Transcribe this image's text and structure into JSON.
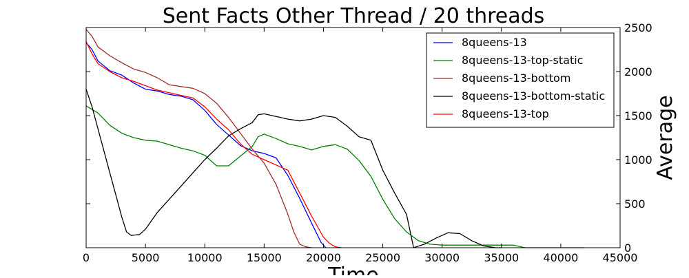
{
  "chart_data": {
    "type": "line",
    "title": "Sent Facts Other Thread / 20 threads",
    "xlabel": "Time",
    "ylabel": "Average",
    "xlim": [
      0,
      45000
    ],
    "ylim": [
      0,
      2500
    ],
    "xticks": [
      0,
      5000,
      10000,
      15000,
      20000,
      25000,
      30000,
      35000,
      40000,
      45000
    ],
    "yticks": [
      0,
      500,
      1000,
      1500,
      2000,
      2500
    ],
    "y_axis_side": "right",
    "grid": false,
    "legend_position": "top-right",
    "series": [
      {
        "name": "8queens-13",
        "color": "#0000ff",
        "x": [
          0,
          500,
          1000,
          2000,
          3000,
          4000,
          5000,
          6000,
          7000,
          8000,
          9000,
          10000,
          11000,
          12000,
          13000,
          14000,
          15000,
          16000,
          17000,
          18000,
          19000,
          19800,
          20200
        ],
        "y": [
          2330,
          2250,
          2120,
          2010,
          1960,
          1870,
          1800,
          1780,
          1740,
          1720,
          1680,
          1560,
          1400,
          1280,
          1160,
          1100,
          1070,
          1020,
          820,
          560,
          280,
          60,
          0
        ]
      },
      {
        "name": "8queens-13-top-static",
        "color": "#008000",
        "x": [
          0,
          1000,
          2000,
          3000,
          4000,
          5000,
          6000,
          7000,
          8000,
          9000,
          10000,
          11000,
          12000,
          13000,
          14000,
          14500,
          15000,
          16000,
          17000,
          18000,
          19000,
          20000,
          21000,
          22000,
          23000,
          24000,
          25000,
          26000,
          27000,
          28000,
          29000,
          30000,
          32000,
          34000,
          35000,
          36000,
          37000,
          40000,
          42000
        ],
        "y": [
          1610,
          1530,
          1390,
          1300,
          1250,
          1220,
          1210,
          1170,
          1130,
          1100,
          1050,
          930,
          930,
          1040,
          1150,
          1260,
          1290,
          1240,
          1180,
          1150,
          1110,
          1150,
          1170,
          1120,
          990,
          810,
          550,
          330,
          180,
          80,
          40,
          30,
          30,
          30,
          30,
          30,
          0,
          0,
          0
        ]
      },
      {
        "name": "8queens-13-bottom",
        "color": "#a52a2a",
        "x": [
          0,
          500,
          1000,
          2000,
          3000,
          4000,
          5000,
          6000,
          7000,
          8000,
          9000,
          10000,
          11000,
          12000,
          13000,
          14000,
          15000,
          16000,
          17000,
          17500,
          18000,
          18500,
          19000
        ],
        "y": [
          2480,
          2400,
          2280,
          2180,
          2100,
          2030,
          1990,
          1930,
          1850,
          1830,
          1810,
          1750,
          1640,
          1480,
          1300,
          1120,
          960,
          720,
          380,
          180,
          40,
          10,
          0
        ]
      },
      {
        "name": "8queens-13-bottom-static",
        "color": "#000000",
        "x": [
          0,
          500,
          1000,
          1500,
          2000,
          2500,
          3000,
          3400,
          3800,
          4500,
          5000,
          6000,
          7000,
          8000,
          9000,
          10000,
          11000,
          12000,
          13000,
          14000,
          14500,
          15000,
          16000,
          17000,
          18000,
          19000,
          20000,
          21000,
          22000,
          23000,
          24000,
          25000,
          26000,
          27000,
          27600,
          28500,
          29500,
          30500,
          31500,
          32500,
          33500,
          34500,
          35000
        ],
        "y": [
          1800,
          1600,
          1350,
          1100,
          850,
          600,
          350,
          180,
          140,
          150,
          210,
          400,
          550,
          700,
          850,
          1000,
          1130,
          1270,
          1350,
          1420,
          1510,
          1520,
          1490,
          1460,
          1440,
          1460,
          1500,
          1480,
          1380,
          1260,
          1220,
          880,
          620,
          380,
          0,
          40,
          110,
          170,
          160,
          80,
          20,
          0,
          0
        ]
      },
      {
        "name": "8queens-13-top",
        "color": "#ff0000",
        "x": [
          0,
          500,
          1000,
          2000,
          3000,
          4000,
          5000,
          6000,
          7000,
          8000,
          9000,
          10000,
          11000,
          12000,
          13000,
          14000,
          15000,
          16000,
          17000,
          18000,
          19000,
          20000,
          20500,
          21000,
          21500
        ],
        "y": [
          2340,
          2200,
          2090,
          2000,
          1930,
          1890,
          1840,
          1790,
          1760,
          1730,
          1700,
          1600,
          1460,
          1340,
          1180,
          1060,
          1000,
          940,
          880,
          620,
          360,
          120,
          50,
          10,
          0
        ]
      }
    ]
  }
}
